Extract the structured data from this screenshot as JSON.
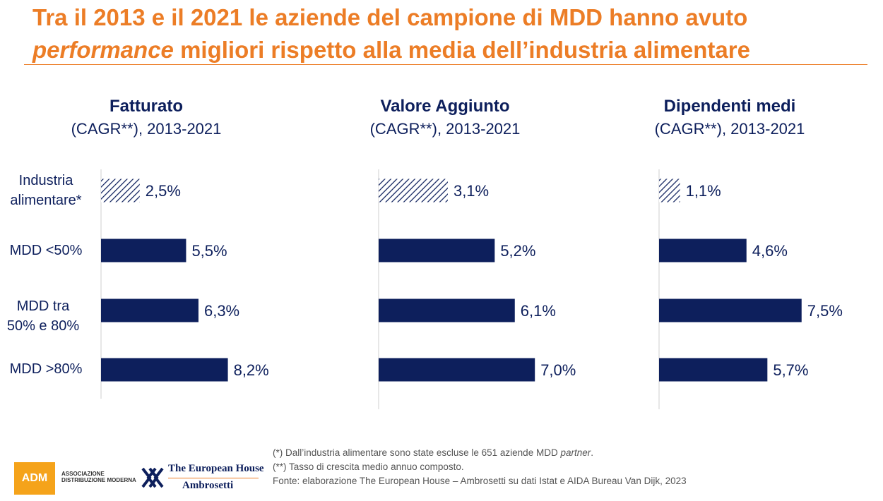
{
  "title": {
    "line1": "Tra il 2013 e il 2021 le aziende del campione di MDD hanno avuto",
    "line2_italic": "performance",
    "line2_rest": " migliori rispetto alla media dell’industria alimentare"
  },
  "categories_display": [
    [
      "Industria",
      "alimentare*"
    ],
    [
      "MDD <50%"
    ],
    [
      "MDD tra",
      "50% e 80%"
    ],
    [
      "MDD >80%"
    ]
  ],
  "chart_data": [
    {
      "type": "bar",
      "orientation": "horizontal",
      "title": "Fatturato",
      "subtitle": "(CAGR**), 2013-2021",
      "categories": [
        "Industria alimentare*",
        "MDD <50%",
        "MDD tra 50% e 80%",
        "MDD >80%"
      ],
      "values": [
        2.5,
        5.5,
        6.3,
        8.2
      ],
      "labels": [
        "2,5%",
        "5,5%",
        "6,3%",
        "8,2%"
      ]
    },
    {
      "type": "bar",
      "orientation": "horizontal",
      "title": "Valore Aggiunto",
      "subtitle": "(CAGR**), 2013-2021",
      "categories": [
        "Industria alimentare*",
        "MDD <50%",
        "MDD tra 50% e 80%",
        "MDD >80%"
      ],
      "values": [
        3.1,
        5.2,
        6.1,
        7.0
      ],
      "labels": [
        "3,1%",
        "5,2%",
        "6,1%",
        "7,0%"
      ]
    },
    {
      "type": "bar",
      "orientation": "horizontal",
      "title": "Dipendenti medi",
      "subtitle": "(CAGR**), 2013-2021",
      "categories": [
        "Industria alimentare*",
        "MDD <50%",
        "MDD tra 50% e 80%",
        "MDD >80%"
      ],
      "values": [
        1.1,
        4.6,
        7.5,
        5.7
      ],
      "labels": [
        "1,1%",
        "4,6%",
        "7,5%",
        "5,7%"
      ]
    }
  ],
  "colors": {
    "bar": "#0d1f5c",
    "title": "#ec7d26",
    "hatch": "#0d1f5c"
  },
  "footnotes": {
    "note1": "(*) Dall’industria alimentare sono state escluse le 651 aziende MDD ",
    "note1_italic": "partner",
    "note1_end": ".",
    "note2": "(**) Tasso di crescita medio annuo composto.",
    "source": "Fonte: elaborazione The European House – Ambrosetti su dati Istat e AIDA Bureau Van Dijk, 2023"
  },
  "logos": {
    "adm_mark": "ADM",
    "adm_line1": "ASSOCIAZIONE",
    "adm_line2": "DISTRIBUZIONE MODERNA",
    "teh_line1": "The European House",
    "teh_line2": "Ambrosetti",
    "teh_icon": "ambrosetti-knot-icon"
  }
}
